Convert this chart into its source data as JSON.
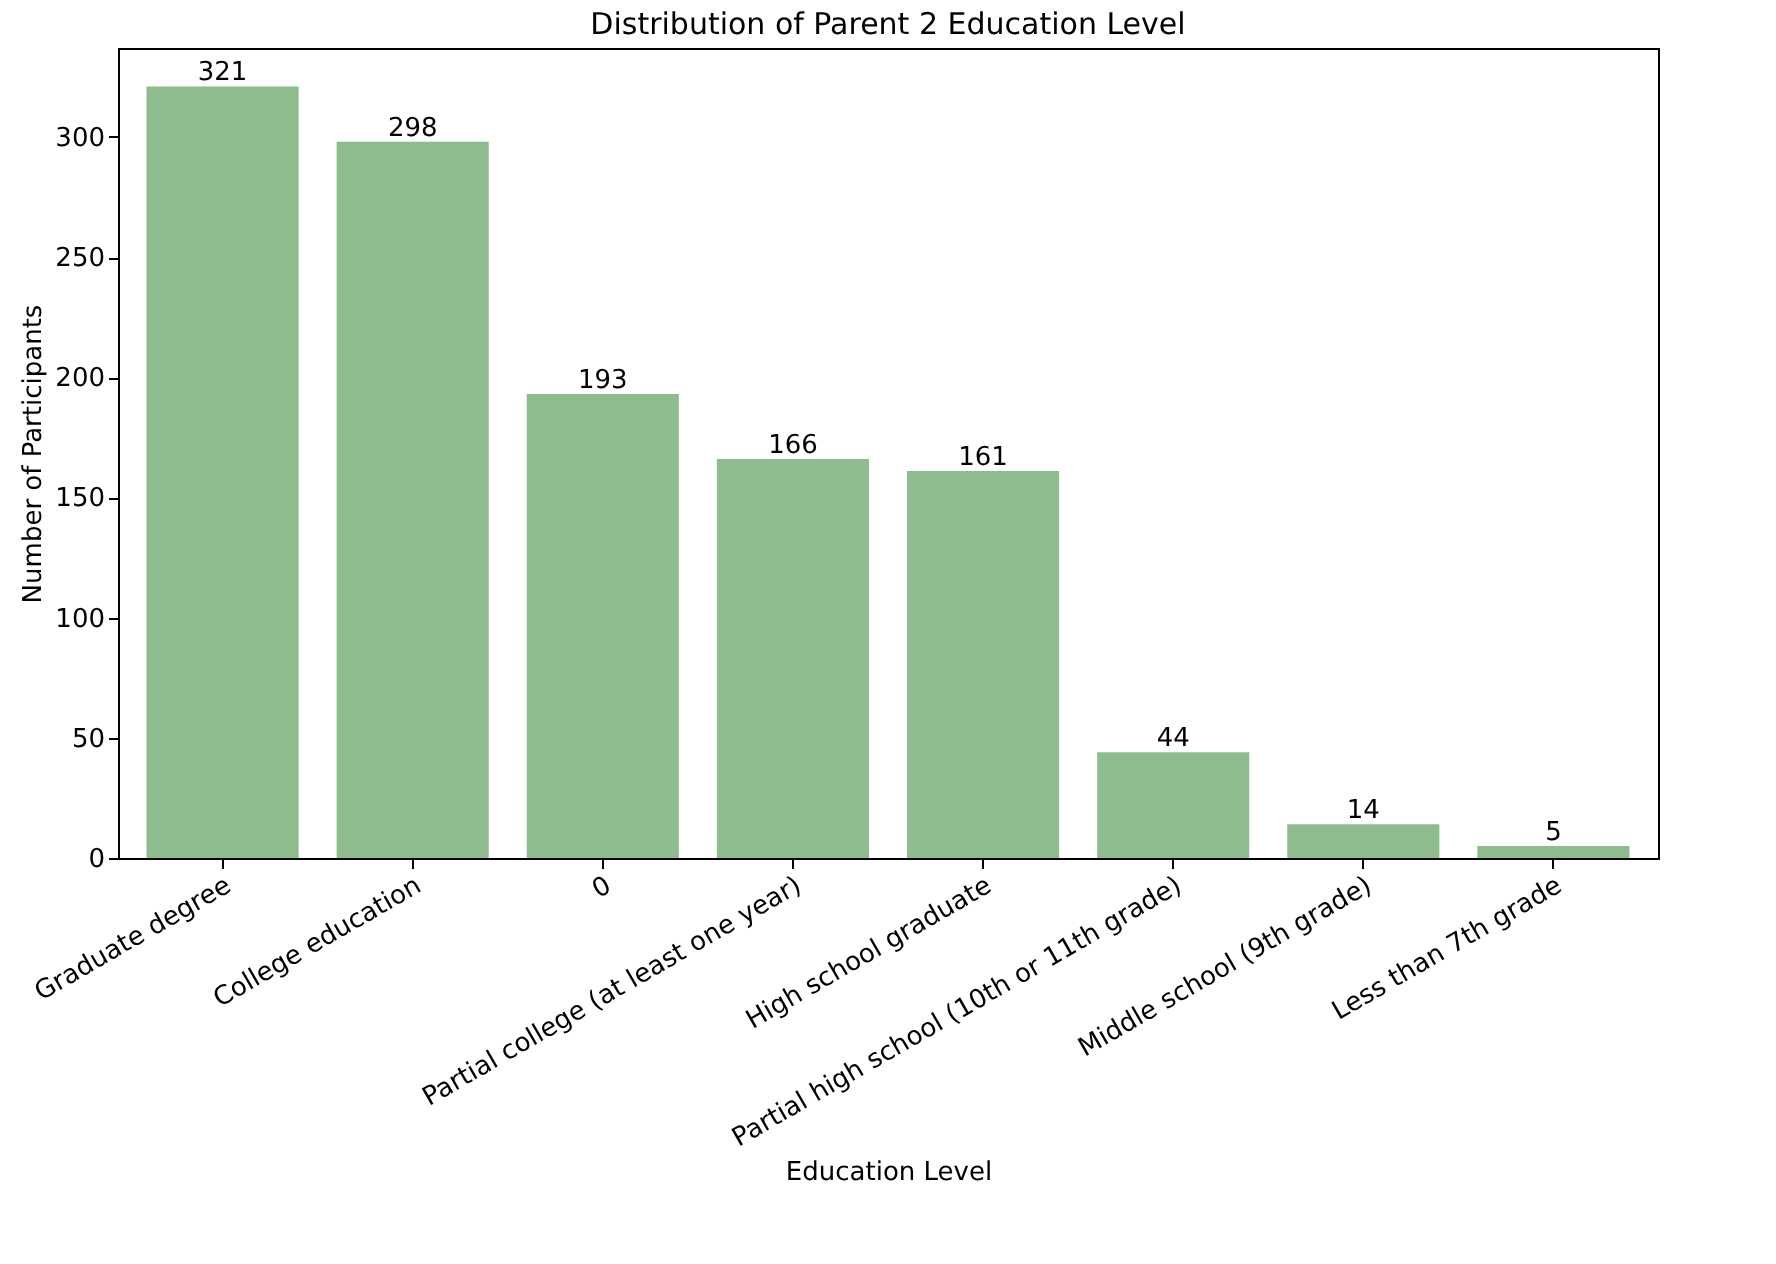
{
  "chart_data": {
    "type": "bar",
    "title": "Distribution of Parent 2 Education Level",
    "xlabel": "Education Level",
    "ylabel": "Number of Participants",
    "categories": [
      "Graduate degree",
      "College education",
      "0",
      "Partial college (at least one year)",
      "High school graduate",
      "Partial high school (10th or 11th grade)",
      "Middle school (9th grade)",
      "Less than 7th grade"
    ],
    "values": [
      321,
      298,
      193,
      166,
      161,
      44,
      14,
      5
    ],
    "color": "#8fbc8f",
    "ylim": [
      0,
      337
    ],
    "yticks": [
      0,
      50,
      100,
      150,
      200,
      250,
      300
    ],
    "data_labels": true
  }
}
